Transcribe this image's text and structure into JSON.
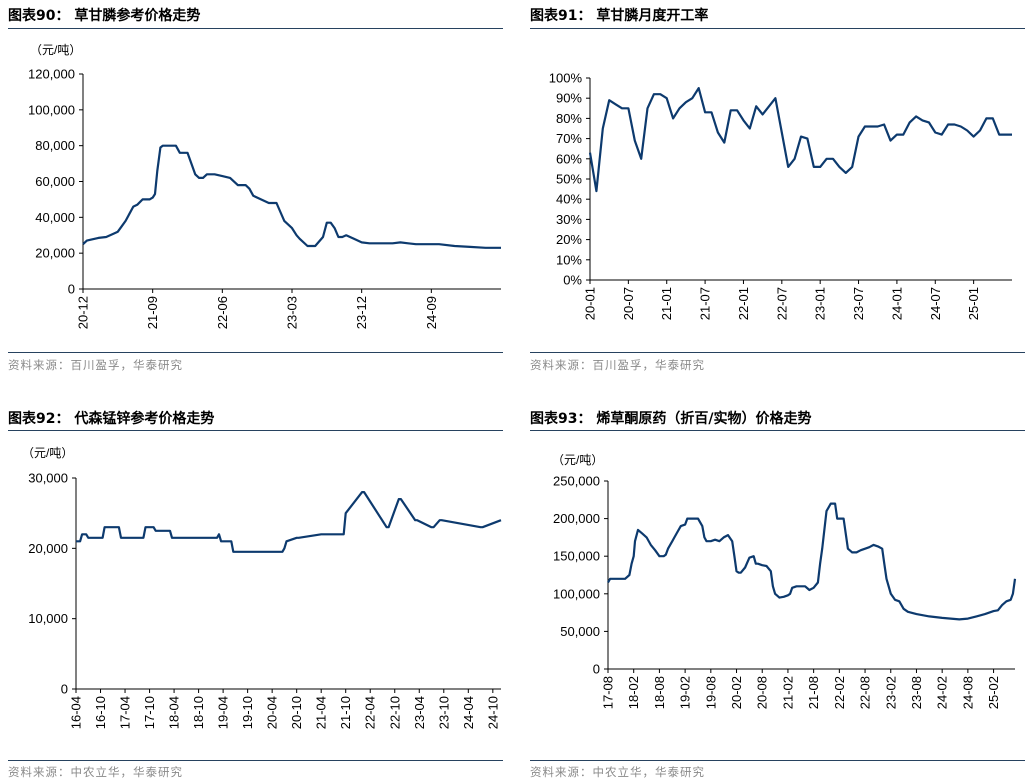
{
  "colors": {
    "line": "#0d3a6e",
    "axis": "#000000",
    "rule": "#27425f",
    "source": "#8a8a8a"
  },
  "panels": [
    {
      "title": "图表90：  草甘膦参考价格走势",
      "source": "资料来源：百川盈孚，华泰研究",
      "unit": "（元/吨）",
      "chart_data": {
        "type": "line",
        "title": "草甘膦参考价格走势",
        "ylabel": "（元/吨）",
        "ylim": [
          0,
          120000
        ],
        "yticks": [
          "0",
          "20,000",
          "40,000",
          "60,000",
          "80,000",
          "100,000",
          "120,000"
        ],
        "xticks": [
          "20-12",
          "21-09",
          "22-06",
          "23-03",
          "23-12",
          "24-09"
        ],
        "x_range": [
          0,
          54
        ],
        "x_tick_positions": [
          0,
          9,
          18,
          27,
          36,
          45
        ],
        "series": [
          {
            "x": [
              0,
              0.5,
              1,
              2,
              3,
              4,
              4.5,
              5,
              5.5,
              6,
              6.5,
              7,
              7.7,
              8,
              8.6,
              9,
              9.3,
              9.6,
              10,
              10.3,
              12,
              12.5,
              13,
              13.5,
              14,
              14.5,
              15,
              15.5,
              16,
              17,
              18,
              19,
              20,
              21,
              21.5,
              22,
              23,
              24,
              25,
              25.5,
              26,
              27,
              27.6,
              28,
              29,
              30,
              31,
              31.5,
              32,
              32.5,
              33,
              33.5,
              34,
              35,
              36,
              37,
              38,
              40,
              41,
              42,
              43,
              45,
              46,
              48,
              50,
              52,
              54
            ],
            "y": [
              25000,
              27000,
              27500,
              28500,
              29000,
              31000,
              32000,
              35000,
              38000,
              42000,
              46000,
              47000,
              50000,
              50000,
              50000,
              51000,
              53000,
              66000,
              79000,
              80000,
              80000,
              76000,
              76000,
              76000,
              70000,
              64000,
              62000,
              62000,
              64000,
              64000,
              63000,
              62000,
              58000,
              58000,
              56000,
              52000,
              50000,
              48000,
              48000,
              43000,
              38000,
              34000,
              30000,
              28000,
              24000,
              24000,
              29000,
              37000,
              37000,
              34000,
              29000,
              29000,
              30000,
              28000,
              26000,
              25500,
              25500,
              25500,
              26000,
              25500,
              25000,
              25000,
              25000,
              24000,
              23500,
              23000,
              23000
            ]
          }
        ]
      }
    },
    {
      "title": "图表91：  草甘膦月度开工率",
      "source": "资料来源：百川盈孚，华泰研究",
      "unit": "",
      "chart_data": {
        "type": "line",
        "title": "草甘膦月度开工率",
        "ylim": [
          0,
          100
        ],
        "yticks": [
          "0%",
          "10%",
          "20%",
          "30%",
          "40%",
          "50%",
          "60%",
          "70%",
          "80%",
          "90%",
          "100%"
        ],
        "xticks": [
          "20-01",
          "20-07",
          "21-01",
          "21-07",
          "22-01",
          "22-07",
          "23-01",
          "23-07",
          "24-01",
          "24-07",
          "25-01"
        ],
        "x_range": [
          0,
          66
        ],
        "x_tick_positions": [
          0,
          6,
          12,
          18,
          24,
          30,
          36,
          42,
          48,
          54,
          60
        ],
        "series": [
          {
            "x": [
              0,
              1,
              2,
              3,
              4,
              5,
              6,
              7,
              8,
              9,
              10,
              11,
              12,
              13,
              14,
              15,
              16,
              17,
              18,
              19,
              20,
              21,
              22,
              23,
              24,
              25,
              26,
              27,
              28,
              29,
              30,
              31,
              32,
              33,
              34,
              35,
              36,
              37,
              38,
              39,
              40,
              41,
              42,
              43,
              44,
              45,
              46,
              47,
              48,
              49,
              50,
              51,
              52,
              53,
              54,
              55,
              56,
              57,
              58,
              59,
              60,
              61,
              62,
              63,
              64,
              65,
              66
            ],
            "y": [
              63,
              44,
              75,
              89,
              87,
              85,
              85,
              69,
              60,
              85,
              92,
              92,
              90,
              80,
              85,
              88,
              90,
              95,
              83,
              83,
              73,
              68,
              84,
              84,
              79,
              75,
              86,
              82,
              86,
              90,
              73,
              56,
              60,
              71,
              70,
              56,
              56,
              60,
              60,
              56,
              53,
              56,
              71,
              76,
              76,
              76,
              77,
              69,
              72,
              72,
              78,
              81,
              79,
              78,
              73,
              72,
              77,
              77,
              76,
              74,
              71,
              74,
              80,
              80,
              72,
              72,
              72
            ]
          }
        ]
      }
    },
    {
      "title": "图表92：  代森锰锌参考价格走势",
      "source": "资料来源：中农立华，华泰研究",
      "unit": "（元/吨）",
      "chart_data": {
        "type": "line",
        "title": "代森锰锌参考价格走势",
        "ylabel": "（元/吨）",
        "ylim": [
          0,
          30000
        ],
        "yticks": [
          "0",
          "10,000",
          "20,000",
          "30,000"
        ],
        "xticks": [
          "16-04",
          "16-10",
          "17-04",
          "17-10",
          "18-04",
          "18-10",
          "19-04",
          "19-10",
          "20-04",
          "20-10",
          "21-04",
          "21-10",
          "22-04",
          "22-10",
          "23-04",
          "23-10",
          "24-04",
          "24-10"
        ],
        "x_range": [
          0,
          104
        ],
        "x_tick_positions": [
          0,
          6,
          12,
          18,
          24,
          30,
          36,
          42,
          48,
          54,
          60,
          66,
          72,
          78,
          84,
          90,
          96,
          102
        ],
        "series": [
          {
            "x": [
              0,
              1,
              1.5,
              2.5,
              3,
              6.5,
              7,
              10.5,
              11,
              16.5,
              17,
              19,
              19.5,
              23,
              23.5,
              34.5,
              35,
              35.5,
              38,
              38.5,
              50.5,
              51,
              51.5,
              54,
              54.5,
              60,
              60.5,
              61,
              65.5,
              66,
              70,
              70.5,
              76,
              76.5,
              79,
              79.5,
              83,
              83.5,
              87,
              87.5,
              89,
              89.5,
              99,
              99.5,
              104
            ],
            "y": [
              21000,
              21000,
              22000,
              22000,
              21500,
              21500,
              23000,
              23000,
              21500,
              21500,
              23000,
              23000,
              22500,
              22500,
              21500,
              21500,
              22000,
              21000,
              21000,
              19500,
              19500,
              20000,
              21000,
              21500,
              21500,
              22000,
              22000,
              22000,
              22000,
              25000,
              28000,
              28000,
              23000,
              23000,
              27000,
              27000,
              24000,
              24000,
              23000,
              23000,
              24000,
              24000,
              23000,
              23000,
              24000
            ]
          }
        ]
      }
    },
    {
      "title": "图表93：  烯草酮原药（折百/实物）价格走势",
      "source": "资料来源：中农立华，华泰研究",
      "unit": "（元/吨）",
      "chart_data": {
        "type": "line",
        "title": "烯草酮原药（折百/实物）价格走势",
        "ylabel": "（元/吨）",
        "ylim": [
          0,
          250000
        ],
        "yticks": [
          "0",
          "50,000",
          "100,000",
          "150,000",
          "200,000",
          "250,000"
        ],
        "xticks": [
          "17-08",
          "18-02",
          "18-08",
          "19-02",
          "19-08",
          "20-02",
          "20-08",
          "21-02",
          "21-08",
          "22-02",
          "22-08",
          "23-02",
          "23-08",
          "24-02",
          "24-08",
          "25-02"
        ],
        "x_range": [
          0,
          95
        ],
        "x_tick_positions": [
          0,
          6,
          12,
          18,
          24,
          30,
          36,
          42,
          48,
          54,
          60,
          66,
          72,
          78,
          84,
          90
        ],
        "series": [
          {
            "x": [
              0,
              0.5,
              1,
              2,
              4,
              5,
              5.5,
              6,
              6.3,
              7,
              8,
              9,
              10,
              11,
              12,
              13,
              13.5,
              14,
              15,
              15.5,
              16,
              17,
              18,
              18.5,
              19,
              20,
              21,
              22,
              22.5,
              23,
              24,
              25,
              26,
              27,
              28,
              29,
              29.5,
              30,
              30.5,
              31,
              32,
              33,
              34,
              34.5,
              35,
              36,
              37,
              38,
              38.5,
              39,
              40,
              41,
              42,
              42.5,
              43,
              44,
              45,
              46,
              47,
              48,
              49,
              49.5,
              50,
              51,
              52,
              53,
              53.5,
              54,
              55,
              56,
              57,
              58,
              59,
              60,
              61,
              62,
              63,
              64,
              64.5,
              65,
              66,
              67,
              68,
              69,
              70,
              72,
              75,
              78,
              80,
              82,
              84,
              86,
              88,
              89,
              90,
              91,
              92,
              93,
              94,
              94.5,
              95
            ],
            "y": [
              115000,
              120000,
              120000,
              120000,
              120000,
              125000,
              140000,
              150000,
              170000,
              185000,
              180000,
              175000,
              165000,
              158000,
              150000,
              150000,
              152000,
              160000,
              170000,
              175000,
              180000,
              190000,
              192000,
              200000,
              200000,
              200000,
              200000,
              190000,
              175000,
              170000,
              170000,
              172000,
              170000,
              175000,
              178000,
              170000,
              150000,
              130000,
              128000,
              128000,
              135000,
              148000,
              150000,
              140000,
              140000,
              138000,
              137000,
              130000,
              110000,
              100000,
              95000,
              96000,
              98000,
              100000,
              108000,
              110000,
              110000,
              110000,
              105000,
              108000,
              115000,
              140000,
              160000,
              210000,
              220000,
              220000,
              200000,
              200000,
              200000,
              160000,
              155000,
              155000,
              158000,
              160000,
              162000,
              165000,
              163000,
              160000,
              140000,
              120000,
              100000,
              92000,
              90000,
              80000,
              76000,
              73000,
              70000,
              68000,
              67000,
              66000,
              67000,
              70000,
              73000,
              75000,
              77000,
              78000,
              85000,
              90000,
              92000,
              100000,
              120000
            ]
          }
        ]
      }
    }
  ]
}
